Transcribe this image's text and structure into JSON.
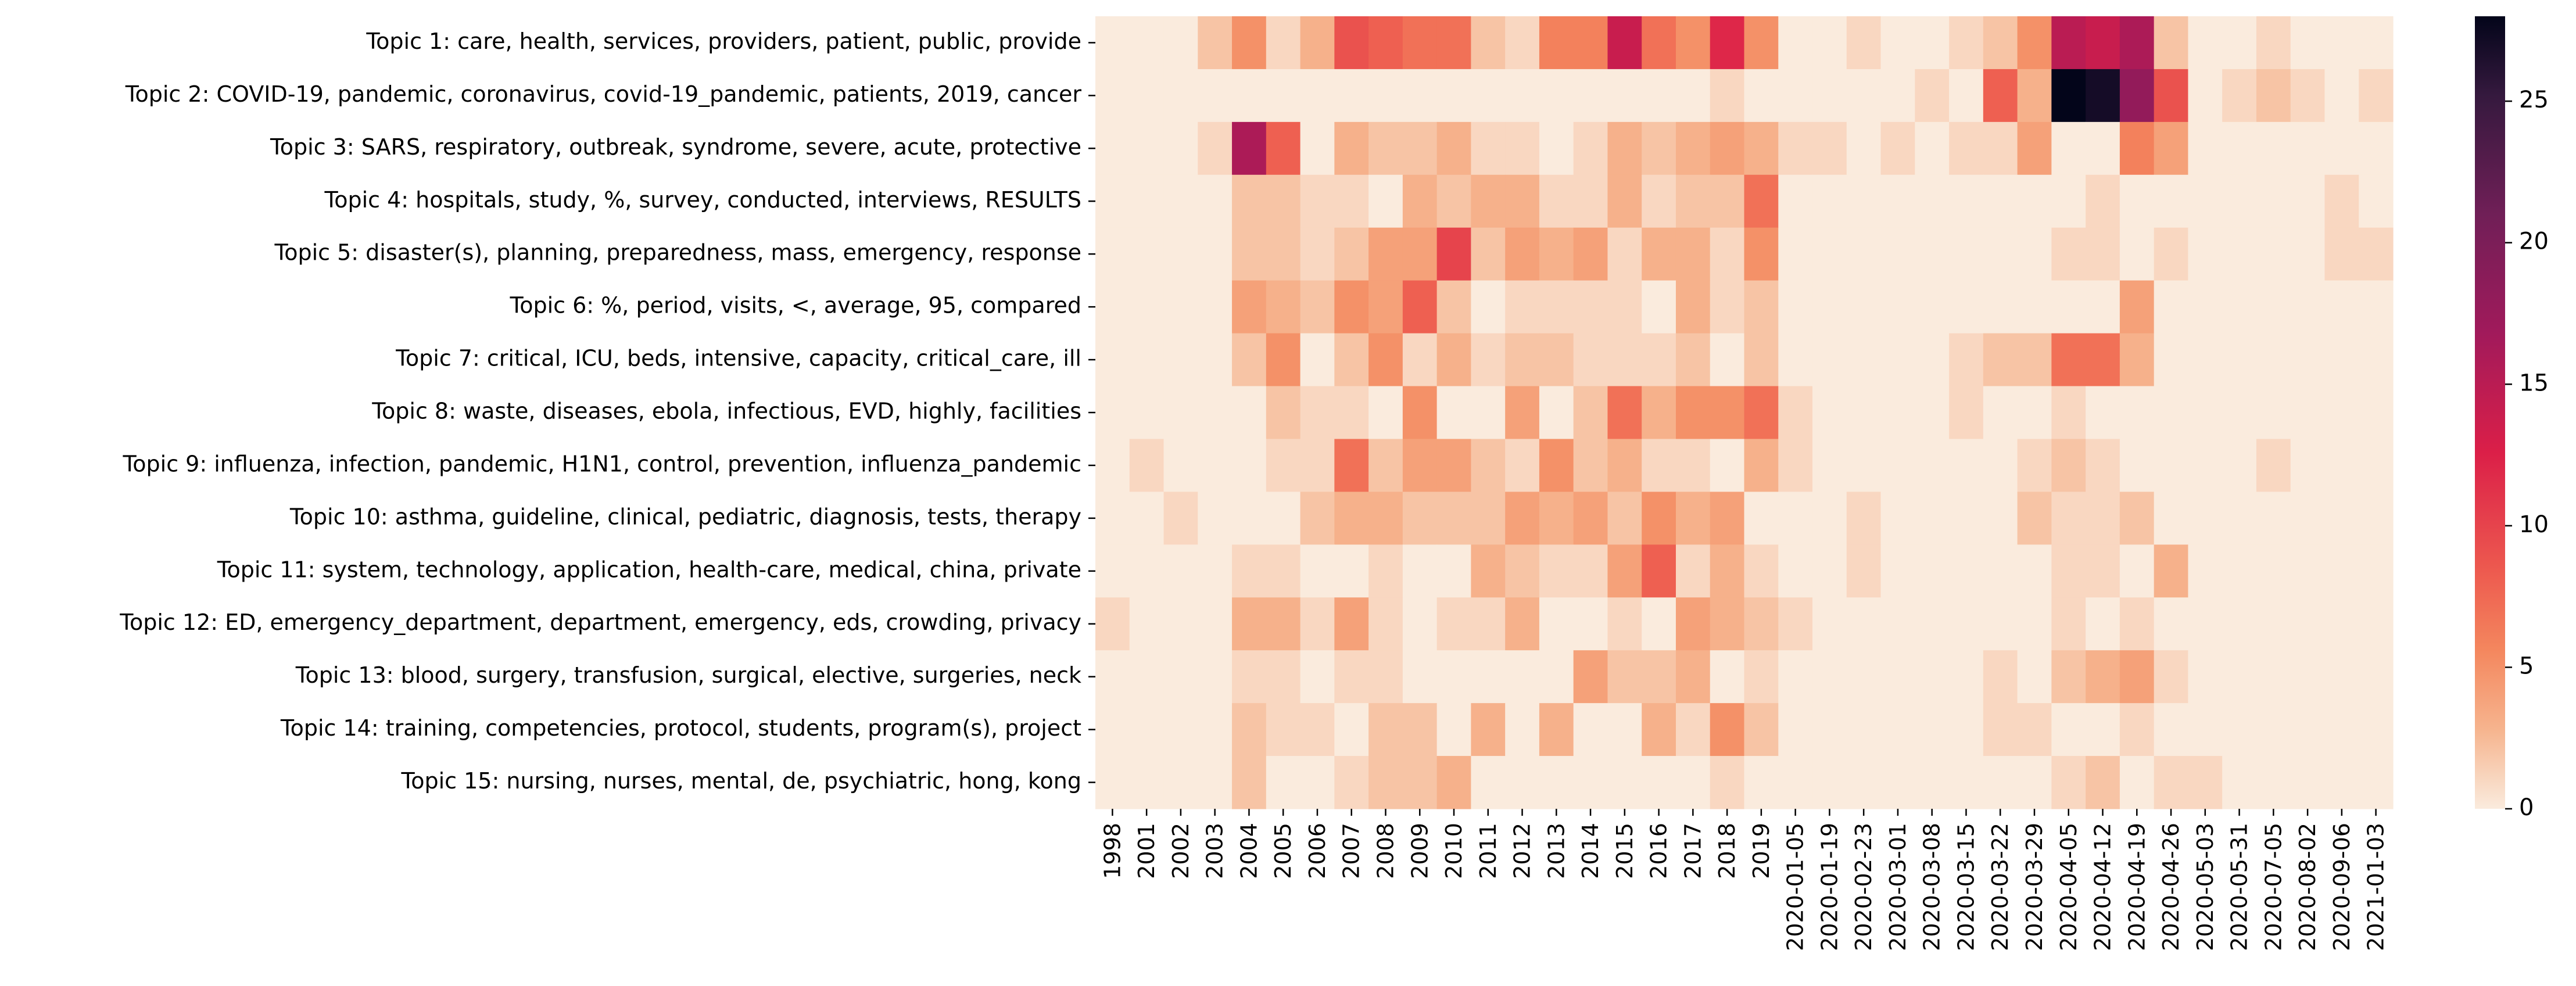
{
  "chart_data": {
    "type": "heatmap",
    "title": "",
    "xlabel": "",
    "ylabel": "",
    "x": [
      "1998",
      "2001",
      "2002",
      "2003",
      "2004",
      "2005",
      "2006",
      "2007",
      "2008",
      "2009",
      "2010",
      "2011",
      "2012",
      "2013",
      "2014",
      "2015",
      "2016",
      "2017",
      "2018",
      "2019",
      "2020-01-05",
      "2020-01-19",
      "2020-02-23",
      "2020-03-01",
      "2020-03-08",
      "2020-03-15",
      "2020-03-22",
      "2020-03-29",
      "2020-04-05",
      "2020-04-12",
      "2020-04-19",
      "2020-04-26",
      "2020-05-03",
      "2020-05-31",
      "2020-07-05",
      "2020-08-02",
      "2020-09-06",
      "2021-01-03"
    ],
    "x_tick_labels": [
      "1998",
      "2001",
      "2002",
      "2003",
      "2004",
      "2005",
      "2006",
      "2007",
      "2008",
      "2009",
      "2010",
      "2011",
      "2012",
      "2013",
      "2014",
      "2015",
      "2016",
      "2017",
      "2018",
      "2019",
      "2020-01-05",
      "2020-01-19",
      "2020-02-23",
      "2020-03-01",
      "2020-03-08",
      "2020-03-15",
      "2020-03-22",
      "2020-03-29",
      "2020-04-05",
      "2020-04-12",
      "2020-04-19",
      "2020-04-26",
      "2020-05-03",
      "2020-05-31",
      "2020-07-05",
      "2020-08-02",
      "2020-09-06",
      "2021-01-03"
    ],
    "y": [
      "Topic 1: care, health, services, providers, patient, public, provide",
      "Topic 2: COVID-19, pandemic, coronavirus, covid-19_pandemic, patients, 2019, cancer",
      "Topic 3: SARS, respiratory, outbreak, syndrome, severe, acute, protective",
      "Topic 4: hospitals, study, %, survey, conducted, interviews, RESULTS",
      "Topic 5: disaster(s), planning, preparedness, mass, emergency, response",
      "Topic 6: %, period, visits, <, average, 95, compared",
      "Topic 7: critical, ICU, beds, intensive, capacity, critical_care, ill",
      "Topic 8: waste, diseases, ebola, infectious, EVD, highly, facilities",
      "Topic 9: influenza, infection, pandemic, H1N1, control, prevention, influenza_pandemic",
      "Topic 10: asthma, guideline, clinical, pediatric, diagnosis, tests, therapy",
      "Topic 11: system, technology, application, health-care, medical, china, private",
      "Topic 12: ED, emergency_department, department, emergency, eds, crowding, privacy",
      "Topic 13: blood, surgery, transfusion, surgical, elective, surgeries, neck",
      "Topic 14: training, competencies, protocol, students, program(s), project",
      "Topic 15: nursing, nurses, mental, de, psychiatric, hong, kong"
    ],
    "values": [
      [
        0,
        0,
        0,
        2,
        5,
        1,
        3,
        9,
        8,
        7,
        7,
        2,
        1,
        6,
        6,
        14,
        7,
        5,
        12,
        5,
        0,
        0,
        1,
        0,
        0,
        1,
        2,
        5,
        15,
        14,
        16,
        2,
        0,
        0,
        1,
        0,
        0,
        0
      ],
      [
        0,
        0,
        0,
        0,
        0,
        0,
        0,
        0,
        0,
        0,
        0,
        0,
        0,
        0,
        0,
        0,
        0,
        0,
        1,
        0,
        0,
        0,
        0,
        0,
        1,
        0,
        8,
        3,
        28,
        27,
        18,
        9,
        0,
        1,
        2,
        1,
        0,
        1
      ],
      [
        0,
        0,
        0,
        1,
        16,
        8,
        0,
        3,
        2,
        2,
        3,
        1,
        1,
        0,
        1,
        3,
        2,
        3,
        4,
        3,
        1,
        1,
        0,
        1,
        0,
        1,
        1,
        4,
        0,
        0,
        6,
        4,
        0,
        0,
        0,
        0,
        0,
        0
      ],
      [
        0,
        0,
        0,
        0,
        2,
        2,
        1,
        1,
        0,
        3,
        2,
        3,
        3,
        1,
        1,
        3,
        1,
        2,
        2,
        7,
        0,
        0,
        0,
        0,
        0,
        0,
        0,
        0,
        0,
        1,
        0,
        0,
        0,
        0,
        0,
        0,
        1,
        0
      ],
      [
        0,
        0,
        0,
        0,
        2,
        2,
        1,
        2,
        4,
        4,
        10,
        2,
        4,
        3,
        4,
        1,
        3,
        3,
        1,
        5,
        0,
        0,
        0,
        0,
        0,
        0,
        0,
        0,
        1,
        1,
        0,
        1,
        0,
        0,
        0,
        0,
        1,
        1
      ],
      [
        0,
        0,
        0,
        0,
        4,
        3,
        2,
        5,
        4,
        8,
        2,
        0,
        1,
        1,
        1,
        1,
        0,
        3,
        1,
        2,
        0,
        0,
        0,
        0,
        0,
        0,
        0,
        0,
        0,
        0,
        4,
        0,
        0,
        0,
        0,
        0,
        0,
        0
      ],
      [
        0,
        0,
        0,
        0,
        2,
        5,
        0,
        2,
        5,
        1,
        3,
        1,
        2,
        2,
        1,
        1,
        1,
        2,
        0,
        2,
        0,
        0,
        0,
        0,
        0,
        1,
        2,
        2,
        7,
        7,
        3,
        0,
        0,
        0,
        0,
        0,
        0,
        0
      ],
      [
        0,
        0,
        0,
        0,
        0,
        2,
        1,
        1,
        0,
        5,
        0,
        0,
        4,
        0,
        2,
        7,
        3,
        5,
        5,
        7,
        1,
        0,
        0,
        0,
        0,
        1,
        0,
        0,
        1,
        0,
        0,
        0,
        0,
        0,
        0,
        0,
        0,
        0
      ],
      [
        0,
        1,
        0,
        0,
        0,
        1,
        1,
        7,
        2,
        4,
        4,
        2,
        1,
        5,
        2,
        3,
        1,
        1,
        0,
        3,
        1,
        0,
        0,
        0,
        0,
        0,
        0,
        1,
        2,
        1,
        0,
        0,
        0,
        0,
        1,
        0,
        0,
        0
      ],
      [
        0,
        0,
        1,
        0,
        0,
        0,
        2,
        3,
        3,
        2,
        2,
        2,
        4,
        3,
        4,
        2,
        5,
        3,
        4,
        0,
        0,
        0,
        1,
        0,
        0,
        0,
        0,
        2,
        1,
        1,
        2,
        0,
        0,
        0,
        0,
        0,
        0,
        0
      ],
      [
        0,
        0,
        0,
        0,
        1,
        1,
        0,
        0,
        1,
        0,
        0,
        3,
        2,
        1,
        1,
        4,
        8,
        1,
        3,
        1,
        0,
        0,
        1,
        0,
        0,
        0,
        0,
        0,
        1,
        1,
        0,
        3,
        0,
        0,
        0,
        0,
        0,
        0
      ],
      [
        1,
        0,
        0,
        0,
        3,
        3,
        1,
        4,
        1,
        0,
        1,
        1,
        3,
        0,
        0,
        1,
        0,
        4,
        3,
        2,
        1,
        0,
        0,
        0,
        0,
        0,
        0,
        0,
        1,
        0,
        1,
        0,
        0,
        0,
        0,
        0,
        0,
        0
      ],
      [
        0,
        0,
        0,
        0,
        1,
        1,
        0,
        1,
        1,
        0,
        0,
        0,
        0,
        0,
        4,
        2,
        2,
        3,
        0,
        1,
        0,
        0,
        0,
        0,
        0,
        0,
        1,
        0,
        2,
        3,
        4,
        1,
        0,
        0,
        0,
        0,
        0,
        0
      ],
      [
        0,
        0,
        0,
        0,
        2,
        1,
        1,
        0,
        2,
        2,
        0,
        3,
        0,
        3,
        0,
        0,
        3,
        1,
        5,
        2,
        0,
        0,
        0,
        0,
        0,
        0,
        1,
        1,
        0,
        0,
        1,
        0,
        0,
        0,
        0,
        0,
        0,
        0
      ],
      [
        0,
        0,
        0,
        0,
        2,
        0,
        0,
        1,
        2,
        2,
        3,
        0,
        0,
        0,
        0,
        0,
        0,
        0,
        1,
        0,
        0,
        0,
        0,
        0,
        0,
        0,
        0,
        0,
        1,
        2,
        0,
        1,
        1,
        0,
        0,
        0,
        0,
        0
      ]
    ],
    "colorbar": {
      "min": 0,
      "max": 28,
      "ticks": [
        0,
        5,
        10,
        15,
        20,
        25
      ],
      "colormap": "rocket_r"
    },
    "grid": false,
    "legend": "colorbar-right"
  }
}
